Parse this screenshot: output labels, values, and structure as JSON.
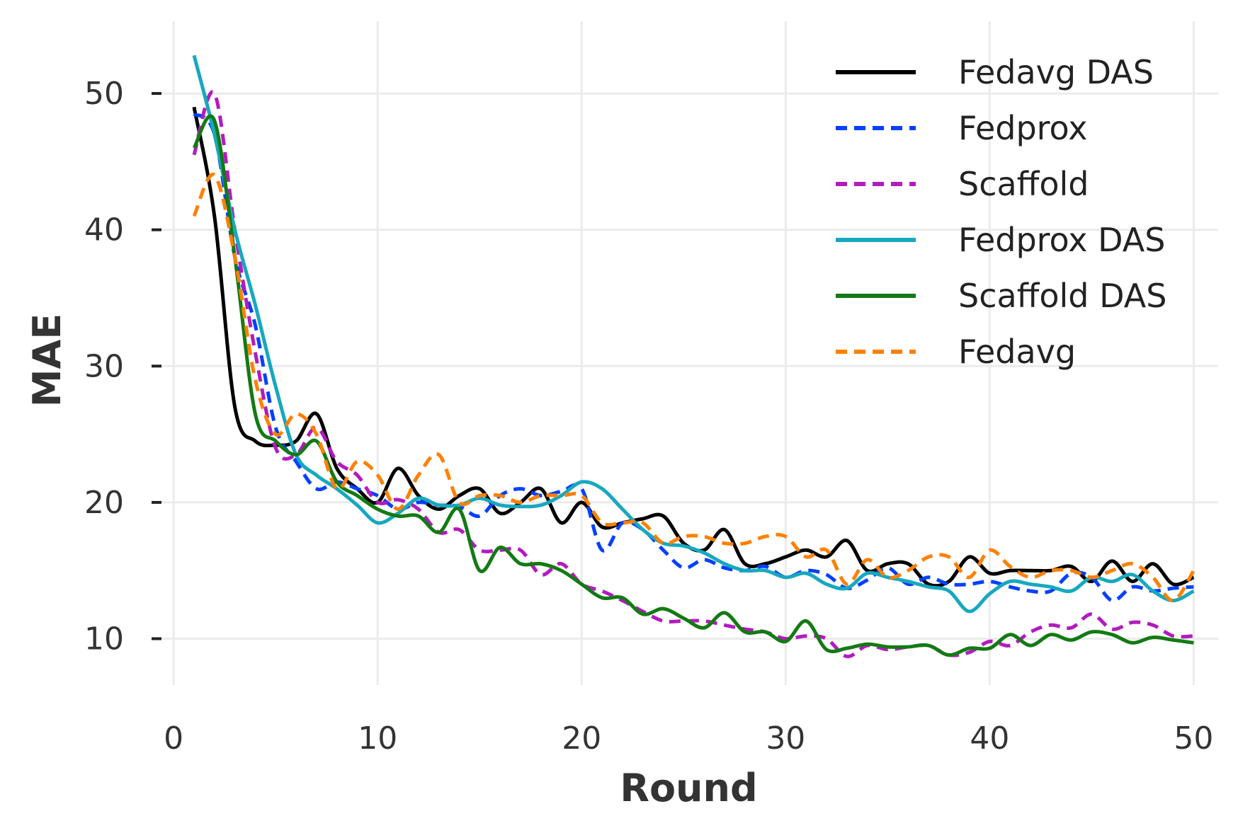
{
  "chart_data": {
    "type": "line",
    "title": "",
    "xlabel": "Round",
    "ylabel": "MAE",
    "xlim": [
      -0.7,
      51.2
    ],
    "ylim": [
      6.6,
      55.3
    ],
    "xticks": [
      0,
      10,
      20,
      30,
      40,
      50
    ],
    "yticks": [
      10,
      20,
      30,
      40,
      50
    ],
    "grid": true,
    "legend_position": "top-right",
    "x": [
      1,
      2,
      3,
      4,
      5,
      6,
      7,
      8,
      9,
      10,
      11,
      12,
      13,
      14,
      15,
      16,
      17,
      18,
      19,
      20,
      21,
      22,
      23,
      24,
      25,
      26,
      27,
      28,
      29,
      30,
      31,
      32,
      33,
      34,
      35,
      36,
      37,
      38,
      39,
      40,
      41,
      42,
      43,
      44,
      45,
      46,
      47,
      48,
      49,
      50
    ],
    "series": [
      {
        "name": "Fedavg DAS",
        "color": "#000000",
        "dash": "solid",
        "values": [
          49.0,
          41.0,
          27.0,
          24.5,
          24.2,
          24.5,
          26.5,
          22.5,
          21.0,
          20.0,
          22.5,
          20.5,
          19.5,
          20.5,
          21.0,
          19.2,
          20.0,
          21.0,
          18.5,
          20.0,
          18.2,
          18.5,
          18.8,
          19.0,
          17.0,
          16.5,
          18.0,
          15.5,
          15.5,
          16.0,
          16.5,
          16.0,
          17.2,
          15.0,
          15.5,
          15.5,
          14.0,
          14.2,
          16.0,
          14.8,
          15.0,
          15.0,
          15.0,
          15.3,
          14.2,
          15.7,
          14.2,
          15.5,
          14.0,
          14.5
        ]
      },
      {
        "name": "Fedprox",
        "color": "#0040ff",
        "dash": "dashed",
        "values": [
          48.5,
          47.0,
          38.0,
          33.0,
          25.5,
          23.0,
          21.0,
          21.5,
          21.0,
          20.5,
          19.5,
          20.0,
          19.8,
          19.7,
          19.0,
          20.5,
          21.0,
          20.5,
          20.8,
          21.0,
          16.5,
          18.5,
          18.0,
          16.5,
          15.2,
          15.8,
          15.2,
          15.0,
          15.3,
          14.5,
          15.0,
          14.7,
          13.7,
          14.3,
          15.2,
          14.0,
          14.5,
          14.0,
          14.0,
          14.2,
          13.8,
          13.5,
          13.5,
          14.8,
          14.5,
          12.8,
          13.8,
          13.5,
          13.7,
          13.8
        ]
      },
      {
        "name": "Scaffold",
        "color": "#b21bbf",
        "dash": "dashed",
        "values": [
          45.5,
          50.0,
          40.0,
          31.0,
          24.0,
          23.5,
          25.5,
          23.0,
          22.0,
          20.0,
          20.2,
          19.5,
          17.8,
          18.0,
          16.5,
          16.5,
          16.5,
          14.7,
          15.5,
          14.0,
          13.5,
          12.8,
          12.0,
          11.3,
          11.3,
          11.3,
          11.0,
          10.7,
          10.5,
          10.0,
          10.2,
          10.0,
          8.7,
          9.5,
          9.2,
          9.4,
          9.5,
          8.8,
          9.0,
          9.8,
          9.5,
          10.5,
          11.0,
          10.8,
          11.8,
          10.7,
          11.2,
          11.0,
          10.2,
          10.2
        ]
      },
      {
        "name": "Fedprox DAS",
        "color": "#17a8bf",
        "dash": "solid",
        "values": [
          52.8,
          47.0,
          40.0,
          34.5,
          28.5,
          23.5,
          22.0,
          21.0,
          19.8,
          18.5,
          19.2,
          20.3,
          19.8,
          19.8,
          20.3,
          19.8,
          19.7,
          19.8,
          20.5,
          21.5,
          21.0,
          19.5,
          18.0,
          17.0,
          16.8,
          16.3,
          15.5,
          15.0,
          15.0,
          14.5,
          14.8,
          14.0,
          13.7,
          14.8,
          14.5,
          14.2,
          13.8,
          13.5,
          12.0,
          13.3,
          14.2,
          14.0,
          13.8,
          13.5,
          14.5,
          14.2,
          14.7,
          13.5,
          12.8,
          13.5
        ]
      },
      {
        "name": "Scaffold DAS",
        "color": "#137a13",
        "dash": "solid",
        "values": [
          46.0,
          48.0,
          38.0,
          26.5,
          24.5,
          23.5,
          24.5,
          21.5,
          20.5,
          19.5,
          19.0,
          19.0,
          17.8,
          19.5,
          15.0,
          16.7,
          15.5,
          15.5,
          15.0,
          14.0,
          13.0,
          13.0,
          11.8,
          12.2,
          11.5,
          10.8,
          11.9,
          10.5,
          10.5,
          9.8,
          11.3,
          9.2,
          9.3,
          9.6,
          9.4,
          9.4,
          9.5,
          8.8,
          9.3,
          9.3,
          10.3,
          9.5,
          10.3,
          9.9,
          10.5,
          10.3,
          9.7,
          10.1,
          9.9,
          9.7
        ]
      },
      {
        "name": "Fedavg",
        "color": "#ff8000",
        "dash": "dashed",
        "values": [
          41.0,
          44.0,
          38.0,
          29.0,
          25.0,
          26.5,
          25.0,
          21.0,
          23.0,
          22.0,
          19.5,
          22.0,
          23.5,
          20.0,
          20.5,
          20.5,
          20.0,
          20.5,
          20.5,
          20.5,
          18.5,
          18.5,
          18.5,
          17.0,
          17.5,
          17.5,
          17.0,
          17.0,
          17.5,
          17.5,
          16.0,
          16.5,
          14.0,
          15.8,
          14.5,
          15.0,
          16.0,
          16.0,
          14.5,
          16.5,
          15.3,
          14.5,
          15.0,
          15.0,
          14.5,
          15.0,
          15.5,
          14.5,
          12.8,
          15.0
        ]
      }
    ]
  }
}
